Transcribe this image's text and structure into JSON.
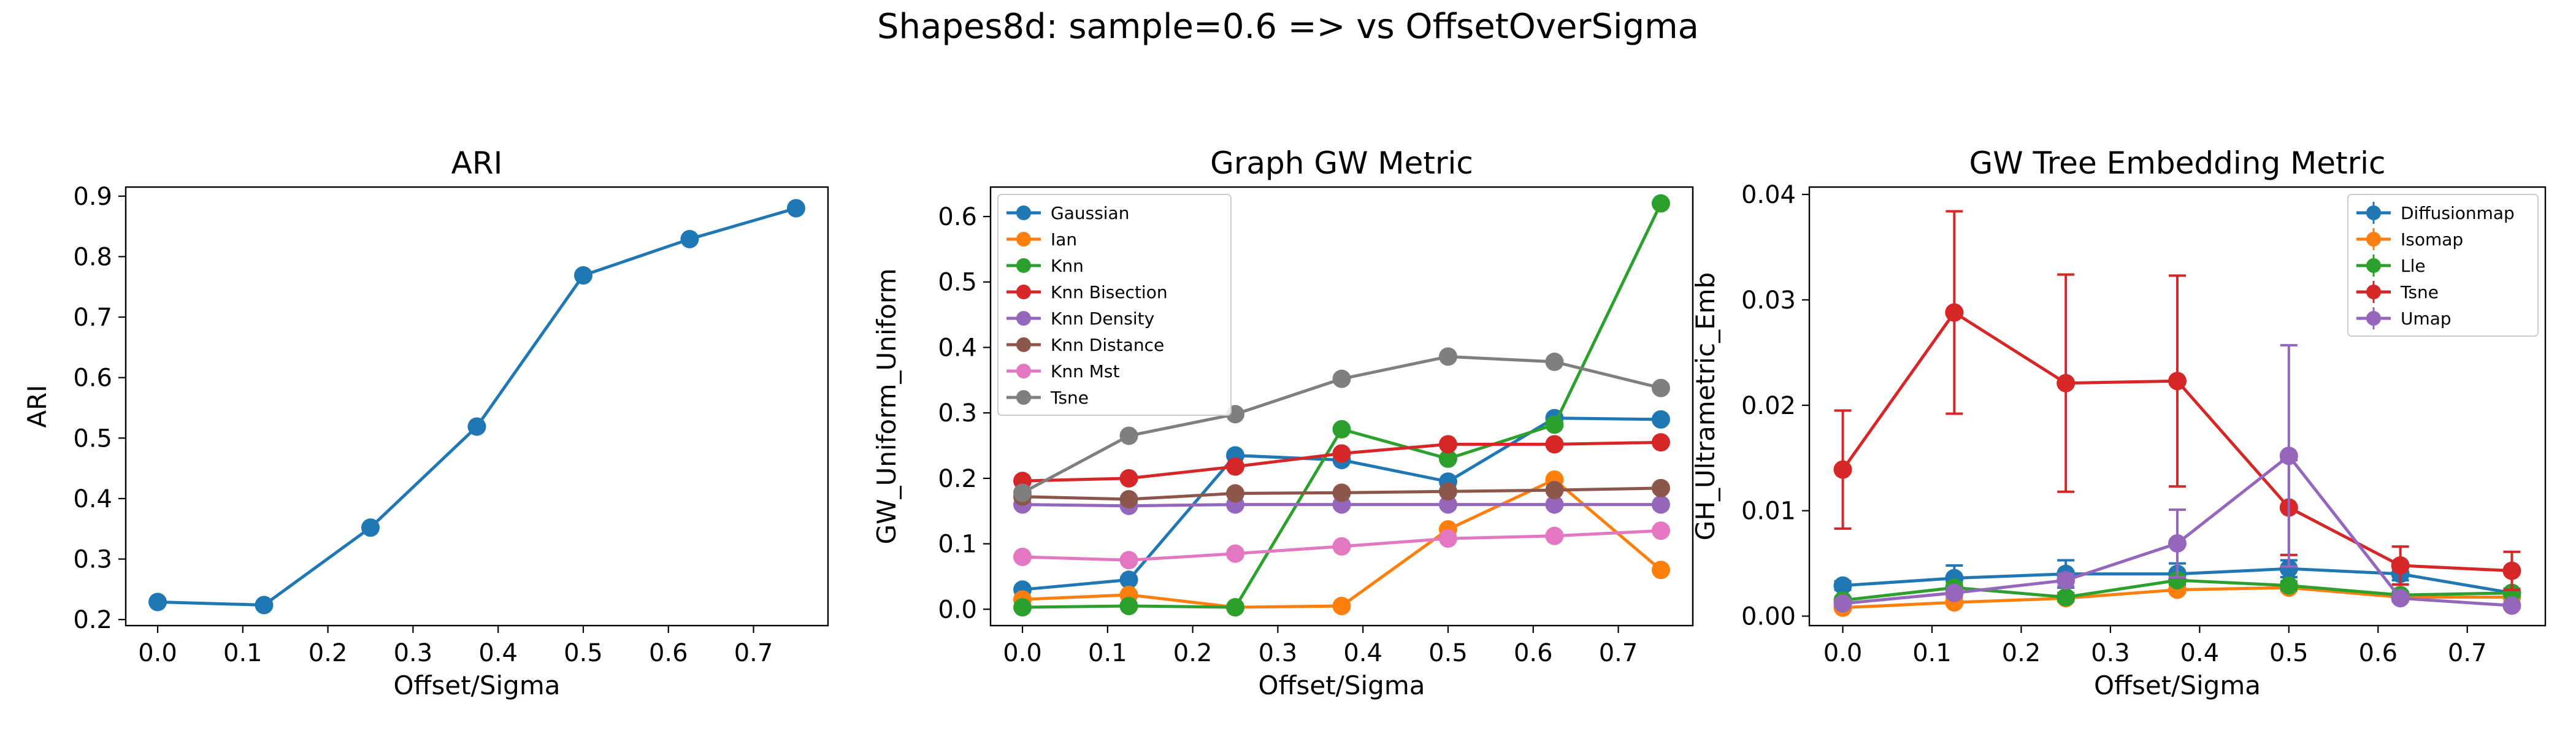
{
  "suptitle": "Shapes8d: sample=0.6 => vs OffsetOverSigma",
  "colors": {
    "blue": "#1f77b4",
    "orange": "#ff7f0e",
    "green": "#2ca02c",
    "red": "#d62728",
    "purple": "#9467bd",
    "brown": "#8c564b",
    "pink": "#e377c2",
    "gray": "#7f7f7f"
  },
  "chart_data": [
    {
      "type": "line",
      "title": "ARI",
      "xlabel": "Offset/Sigma",
      "ylabel": "ARI",
      "xlim": [
        -0.0375,
        0.7875
      ],
      "ylim": [
        0.19,
        0.915
      ],
      "xticks": [
        0.0,
        0.1,
        0.2,
        0.3,
        0.4,
        0.5,
        0.6,
        0.7
      ],
      "yticks": [
        0.2,
        0.3,
        0.4,
        0.5,
        0.6,
        0.7,
        0.8,
        0.9
      ],
      "x": [
        0.0,
        0.125,
        0.25,
        0.375,
        0.5,
        0.625,
        0.75
      ],
      "series": [
        {
          "values": [
            0.229,
            0.224,
            0.352,
            0.519,
            0.769,
            0.829,
            0.88
          ],
          "color": "#1f77b4"
        }
      ]
    },
    {
      "type": "line",
      "title": "Graph GW Metric",
      "xlabel": "Offset/Sigma",
      "ylabel": "GW_Uniform_Uniform",
      "xlim": [
        -0.0375,
        0.7875
      ],
      "ylim": [
        -0.025,
        0.645
      ],
      "xticks": [
        0.0,
        0.1,
        0.2,
        0.3,
        0.4,
        0.5,
        0.6,
        0.7
      ],
      "yticks": [
        0.0,
        0.1,
        0.2,
        0.3,
        0.4,
        0.5,
        0.6
      ],
      "legend": "top-left",
      "x": [
        0.0,
        0.125,
        0.25,
        0.375,
        0.5,
        0.625,
        0.75
      ],
      "series": [
        {
          "name": "Gaussian",
          "color": "#1f77b4",
          "values": [
            0.03,
            0.045,
            0.235,
            0.228,
            0.195,
            0.292,
            0.29
          ]
        },
        {
          "name": "Ian",
          "color": "#ff7f0e",
          "values": [
            0.015,
            0.022,
            0.003,
            0.005,
            0.122,
            0.198,
            0.06
          ]
        },
        {
          "name": "Knn",
          "color": "#2ca02c",
          "values": [
            0.003,
            0.005,
            0.003,
            0.275,
            0.23,
            0.282,
            0.62
          ]
        },
        {
          "name": "Knn Bisection",
          "color": "#d62728",
          "values": [
            0.196,
            0.2,
            0.218,
            0.238,
            0.252,
            0.252,
            0.255
          ]
        },
        {
          "name": "Knn Density",
          "color": "#9467bd",
          "values": [
            0.16,
            0.158,
            0.16,
            0.16,
            0.16,
            0.16,
            0.16
          ]
        },
        {
          "name": "Knn Distance",
          "color": "#8c564b",
          "values": [
            0.172,
            0.168,
            0.177,
            0.178,
            0.18,
            0.182,
            0.185
          ]
        },
        {
          "name": "Knn Mst",
          "color": "#e377c2",
          "values": [
            0.08,
            0.075,
            0.085,
            0.096,
            0.108,
            0.112,
            0.12
          ]
        },
        {
          "name": "Tsne",
          "color": "#7f7f7f",
          "values": [
            0.178,
            0.265,
            0.298,
            0.352,
            0.386,
            0.378,
            0.338
          ]
        }
      ]
    },
    {
      "type": "line",
      "title": "GW Tree Embedding Metric",
      "xlabel": "Offset/Sigma",
      "ylabel": "GH_Ultrametric_Emb",
      "xlim": [
        -0.0375,
        0.7875
      ],
      "ylim": [
        -0.0009,
        0.0407
      ],
      "xticks": [
        0.0,
        0.1,
        0.2,
        0.3,
        0.4,
        0.5,
        0.6,
        0.7
      ],
      "yticks": [
        0.0,
        0.01,
        0.02,
        0.03,
        0.04
      ],
      "ytick_labels": [
        "0.00",
        "0.01",
        "0.02",
        "0.03",
        "0.04"
      ],
      "legend": "top-right",
      "x": [
        0.0,
        0.125,
        0.25,
        0.375,
        0.5,
        0.625,
        0.75
      ],
      "series": [
        {
          "name": "Diffusionmap",
          "color": "#1f77b4",
          "values": [
            0.0029,
            0.0036,
            0.004,
            0.004,
            0.0045,
            0.004,
            0.0022
          ],
          "err": [
            0.0004,
            0.0012,
            0.0013,
            0.001,
            0.0008,
            0.0006,
            0.0004
          ]
        },
        {
          "name": "Isomap",
          "color": "#ff7f0e",
          "values": [
            0.0008,
            0.0013,
            0.0017,
            0.0025,
            0.0027,
            0.0018,
            0.0018
          ],
          "err": [
            0.0002,
            0.0002,
            0.0002,
            0.0003,
            0.0003,
            0.0002,
            0.0002
          ]
        },
        {
          "name": "Lle",
          "color": "#2ca02c",
          "values": [
            0.0015,
            0.0027,
            0.0018,
            0.0034,
            0.0029,
            0.002,
            0.0022
          ],
          "err": [
            0.0003,
            0.0005,
            0.0004,
            0.0004,
            0.0004,
            0.0003,
            0.0003
          ]
        },
        {
          "name": "Tsne",
          "color": "#d62728",
          "values": [
            0.0139,
            0.0288,
            0.0221,
            0.0223,
            0.0103,
            0.0048,
            0.0043
          ],
          "err": [
            0.0056,
            0.0096,
            0.0103,
            0.01,
            0.0045,
            0.0018,
            0.0018
          ]
        },
        {
          "name": "Umap",
          "color": "#9467bd",
          "values": [
            0.0012,
            0.0022,
            0.0034,
            0.0069,
            0.0152,
            0.0017,
            0.001
          ],
          "err": [
            0.0002,
            0.0004,
            0.0006,
            0.0032,
            0.0105,
            0.0003,
            0.0002
          ]
        }
      ]
    }
  ]
}
